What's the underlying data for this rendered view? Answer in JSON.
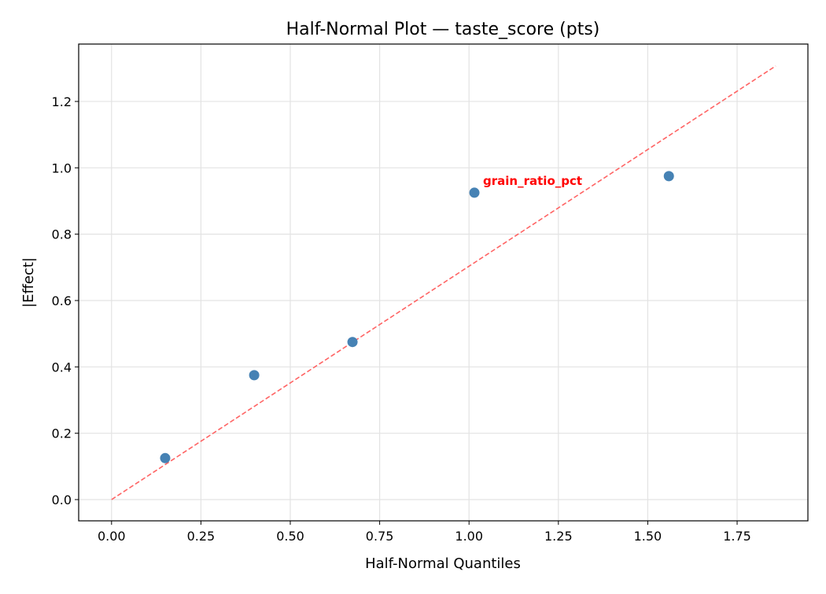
{
  "chart_data": {
    "type": "scatter",
    "title": "Half-Normal Plot — taste_score (pts)",
    "xlabel": "Half-Normal Quantiles",
    "ylabel": "|Effect|",
    "xlim": [
      -0.092,
      1.948
    ],
    "ylim": [
      -0.064,
      1.373
    ],
    "xticks": [
      0.0,
      0.25,
      0.5,
      0.75,
      1.0,
      1.25,
      1.5,
      1.75
    ],
    "xtick_labels": [
      "0.00",
      "0.25",
      "0.50",
      "0.75",
      "1.00",
      "1.25",
      "1.50",
      "1.75"
    ],
    "yticks": [
      0.0,
      0.2,
      0.4,
      0.6,
      0.8,
      1.0,
      1.2
    ],
    "ytick_labels": [
      "0.0",
      "0.2",
      "0.4",
      "0.6",
      "0.8",
      "1.0",
      "1.2"
    ],
    "grid": true,
    "points": [
      {
        "x": 0.15,
        "y": 0.125
      },
      {
        "x": 0.399,
        "y": 0.375
      },
      {
        "x": 0.674,
        "y": 0.475
      },
      {
        "x": 1.015,
        "y": 0.925,
        "label": "grain_ratio_pct"
      },
      {
        "x": 1.559,
        "y": 0.975
      }
    ],
    "reference_line": {
      "x": [
        0,
        1.858
      ],
      "y": [
        0,
        1.307
      ],
      "style": "dashed"
    },
    "colors": {
      "points": "#4682b4",
      "reference_line": "#ff6464",
      "annotation": "#ff0000"
    }
  }
}
